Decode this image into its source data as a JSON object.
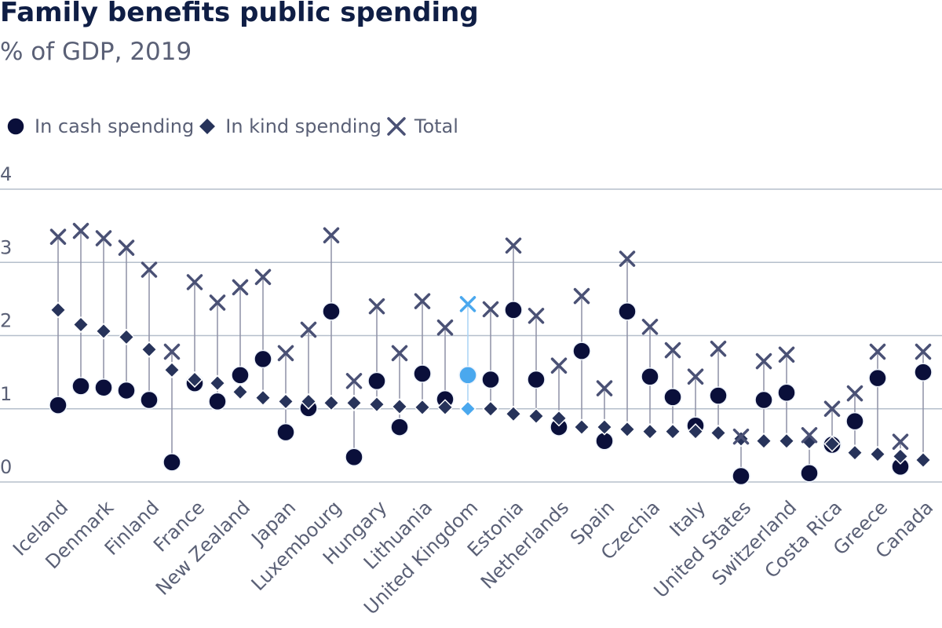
{
  "title": "Family benefits public spending",
  "subtitle": "% of GDP, 2019",
  "legend": {
    "cash": "In cash spending",
    "kind": "In kind spending",
    "total": "Total"
  },
  "colors": {
    "cash": "#0a0f3a",
    "kind": "#27335a",
    "total": "#4a5175",
    "stem": "#8e91a6",
    "grid": "#b5bfcb",
    "highlight": "#4aa8ee",
    "axis_text": "#5a6076"
  },
  "chart_data": {
    "type": "scatter",
    "yticks": [
      0,
      1,
      2,
      3,
      4
    ],
    "ylim": [
      -0.2,
      4.15
    ],
    "grid": true,
    "legend_position": "top-left",
    "highlighted_category": "United Kingdom",
    "categories": [
      "Iceland",
      "Denmark",
      "Finland",
      "France",
      "New Zealand",
      "Japan",
      "Luxembourg",
      "Hungary",
      "Lithuania",
      "United Kingdom",
      "Estonia",
      "Netherlands",
      "Spain",
      "Czechia",
      "Italy",
      "United States",
      "Switzerland",
      "Costa Rica",
      "Greece",
      "Canada"
    ],
    "points": [
      {
        "cash": 1.05,
        "kind": 2.35,
        "total": 3.35
      },
      {
        "cash": 1.31,
        "kind": 2.15,
        "total": 3.43
      },
      {
        "cash": 1.29,
        "kind": 2.06,
        "total": 3.33
      },
      {
        "cash": 1.25,
        "kind": 1.98,
        "total": 3.2
      },
      {
        "cash": 1.12,
        "kind": 1.81,
        "total": 2.9
      },
      {
        "cash": 0.27,
        "kind": 1.53,
        "total": 1.78
      },
      {
        "cash": 1.35,
        "kind": 1.4,
        "total": 2.73
      },
      {
        "cash": 1.1,
        "kind": 1.35,
        "total": 2.45
      },
      {
        "cash": 1.46,
        "kind": 1.23,
        "total": 2.66
      },
      {
        "cash": 1.68,
        "kind": 1.15,
        "total": 2.8
      },
      {
        "cash": 0.68,
        "kind": 1.1,
        "total": 1.76
      },
      {
        "cash": 1.01,
        "kind": 1.1,
        "total": 2.08
      },
      {
        "cash": 2.33,
        "kind": 1.08,
        "total": 3.37
      },
      {
        "cash": 0.34,
        "kind": 1.08,
        "total": 1.38
      },
      {
        "cash": 1.38,
        "kind": 1.06,
        "total": 2.4
      },
      {
        "cash": 0.75,
        "kind": 1.03,
        "total": 1.76
      },
      {
        "cash": 1.48,
        "kind": 1.02,
        "total": 2.47
      },
      {
        "cash": 1.13,
        "kind": 1.02,
        "total": 2.11
      },
      {
        "cash": 1.46,
        "kind": 1.0,
        "total": 2.43
      },
      {
        "cash": 1.4,
        "kind": 1.0,
        "total": 2.36
      },
      {
        "cash": 2.35,
        "kind": 0.93,
        "total": 3.23
      },
      {
        "cash": 1.4,
        "kind": 0.9,
        "total": 2.27
      },
      {
        "cash": 0.75,
        "kind": 0.87,
        "total": 1.59
      },
      {
        "cash": 1.79,
        "kind": 0.75,
        "total": 2.54
      },
      {
        "cash": 0.56,
        "kind": 0.75,
        "total": 1.28
      },
      {
        "cash": 2.33,
        "kind": 0.72,
        "total": 3.05
      },
      {
        "cash": 1.44,
        "kind": 0.69,
        "total": 2.12
      },
      {
        "cash": 1.16,
        "kind": 0.69,
        "total": 1.8
      },
      {
        "cash": 0.77,
        "kind": 0.69,
        "total": 1.44
      },
      {
        "cash": 1.18,
        "kind": 0.67,
        "total": 1.82
      },
      {
        "cash": 0.08,
        "kind": 0.59,
        "total": 0.62
      },
      {
        "cash": 1.12,
        "kind": 0.56,
        "total": 1.65
      },
      {
        "cash": 1.22,
        "kind": 0.56,
        "total": 1.74
      },
      {
        "cash": 0.12,
        "kind": 0.55,
        "total": 0.64
      },
      {
        "cash": 0.51,
        "kind": 0.52,
        "total": 1.0
      },
      {
        "cash": 0.83,
        "kind": 0.4,
        "total": 1.21
      },
      {
        "cash": 1.42,
        "kind": 0.38,
        "total": 1.78
      },
      {
        "cash": 0.21,
        "kind": 0.35,
        "total": 0.55
      },
      {
        "cash": 1.5,
        "kind": 0.3,
        "total": 1.78
      }
    ]
  }
}
